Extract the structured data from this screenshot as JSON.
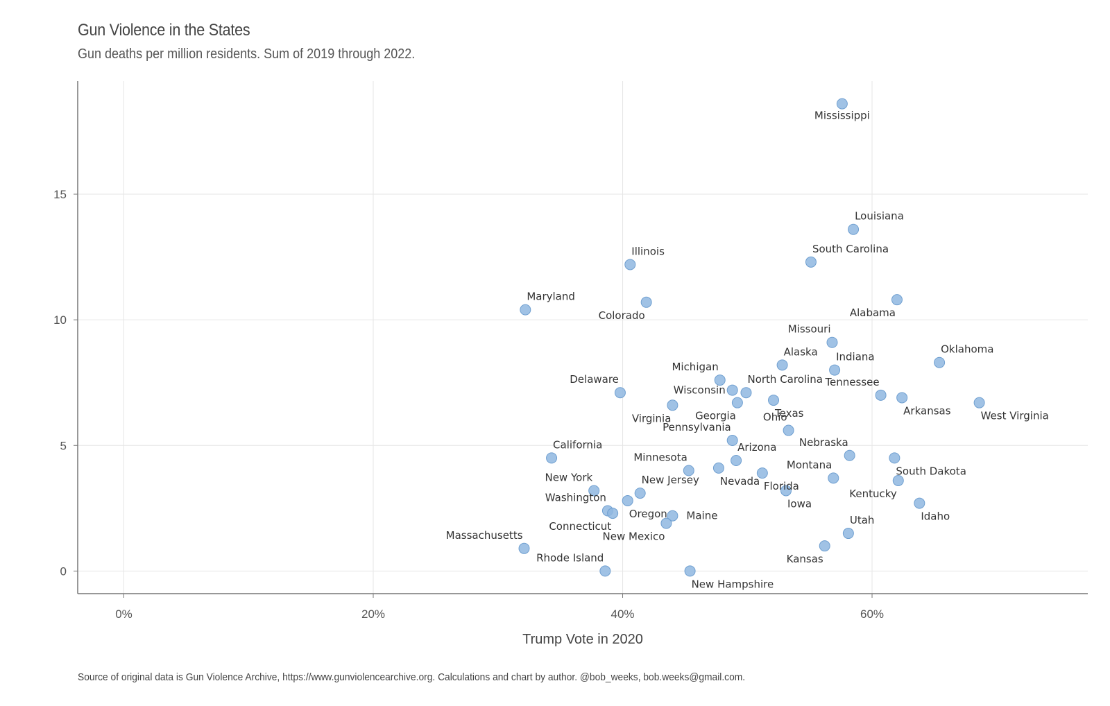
{
  "chart_data": {
    "type": "scatter",
    "title": "Gun Violence in the States",
    "subtitle": "Gun deaths per million residents. Sum of 2019 through 2022.",
    "xlabel": "Trump Vote in 2020",
    "ylabel": "",
    "caption": "Source of original data is Gun Violence Archive, https://www.gunviolencearchive.org. Calculations and chart by author. @bob_weeks, bob.weeks@gmail.com.",
    "xlim": [
      -3.7,
      77.3
    ],
    "ylim": [
      -0.9,
      19.5
    ],
    "x_ticks": [
      0,
      20,
      40,
      60
    ],
    "x_tick_labels": [
      "0%",
      "20%",
      "40%",
      "60%"
    ],
    "y_ticks": [
      0,
      5,
      10,
      15
    ],
    "y_tick_labels": [
      "0",
      "5",
      "10",
      "15"
    ],
    "grid": true,
    "point_color": "#8fb7e0",
    "points": [
      {
        "label": "Mississippi",
        "x": 57.6,
        "y": 18.6,
        "pos": "below"
      },
      {
        "label": "Louisiana",
        "x": 58.5,
        "y": 13.6,
        "pos": "above-right"
      },
      {
        "label": "South Carolina",
        "x": 55.1,
        "y": 12.3,
        "pos": "above-right"
      },
      {
        "label": "Illinois",
        "x": 40.6,
        "y": 12.2,
        "pos": "above-right"
      },
      {
        "label": "Alabama",
        "x": 62.0,
        "y": 10.8,
        "pos": "below-left"
      },
      {
        "label": "Colorado",
        "x": 41.9,
        "y": 10.7,
        "pos": "below-left"
      },
      {
        "label": "Maryland",
        "x": 32.2,
        "y": 10.4,
        "pos": "above-right"
      },
      {
        "label": "Missouri",
        "x": 56.8,
        "y": 9.1,
        "pos": "above-left"
      },
      {
        "label": "Oklahoma",
        "x": 65.4,
        "y": 8.3,
        "pos": "above-right"
      },
      {
        "label": "Alaska",
        "x": 52.8,
        "y": 8.2,
        "pos": "above-right"
      },
      {
        "label": "Indiana",
        "x": 57.0,
        "y": 8.0,
        "pos": "above-right"
      },
      {
        "label": "Michigan",
        "x": 47.8,
        "y": 7.6,
        "pos": "above-left"
      },
      {
        "label": "Wisconsin",
        "x": 48.8,
        "y": 7.2,
        "pos": "left"
      },
      {
        "label": "North Carolina",
        "x": 49.9,
        "y": 7.1,
        "pos": "above-right"
      },
      {
        "label": "Delaware",
        "x": 39.8,
        "y": 7.1,
        "pos": "above-left"
      },
      {
        "label": "Tennessee",
        "x": 60.7,
        "y": 7.0,
        "pos": "above-left"
      },
      {
        "label": "Arkansas",
        "x": 62.4,
        "y": 6.9,
        "pos": "below-right"
      },
      {
        "label": "Texas",
        "x": 52.1,
        "y": 6.8,
        "pos": "below-right"
      },
      {
        "label": "Georgia",
        "x": 49.2,
        "y": 6.7,
        "pos": "below-left"
      },
      {
        "label": "West Virginia",
        "x": 68.6,
        "y": 6.7,
        "pos": "below-right"
      },
      {
        "label": "Virginia",
        "x": 44.0,
        "y": 6.6,
        "pos": "below-left"
      },
      {
        "label": "Ohio",
        "x": 53.3,
        "y": 5.6,
        "pos": "above-left"
      },
      {
        "label": "Pennsylvania",
        "x": 48.8,
        "y": 5.2,
        "pos": "above-left"
      },
      {
        "label": "Nebraska",
        "x": 58.2,
        "y": 4.6,
        "pos": "above-left"
      },
      {
        "label": "California",
        "x": 34.3,
        "y": 4.5,
        "pos": "above-right"
      },
      {
        "label": "South Dakota",
        "x": 61.8,
        "y": 4.5,
        "pos": "below-right"
      },
      {
        "label": "Arizona",
        "x": 49.1,
        "y": 4.4,
        "pos": "above-right"
      },
      {
        "label": "Minnesota",
        "x": 45.3,
        "y": 4.0,
        "pos": "above-left"
      },
      {
        "label": "Nevada",
        "x": 47.7,
        "y": 4.1,
        "pos": "below-right"
      },
      {
        "label": "Florida",
        "x": 51.2,
        "y": 3.9,
        "pos": "below-right"
      },
      {
        "label": "Montana",
        "x": 56.9,
        "y": 3.7,
        "pos": "above-left"
      },
      {
        "label": "Kentucky",
        "x": 62.1,
        "y": 3.6,
        "pos": "below-left"
      },
      {
        "label": "New York",
        "x": 37.7,
        "y": 3.2,
        "pos": "above-left"
      },
      {
        "label": "New Jersey",
        "x": 41.4,
        "y": 3.1,
        "pos": "above-right"
      },
      {
        "label": "Iowa",
        "x": 53.1,
        "y": 3.2,
        "pos": "below-right"
      },
      {
        "label": "Oregon",
        "x": 40.4,
        "y": 2.8,
        "pos": "below-right"
      },
      {
        "label": "Idaho",
        "x": 63.8,
        "y": 2.7,
        "pos": "below-right"
      },
      {
        "label": "Washington",
        "x": 38.8,
        "y": 2.4,
        "pos": "above-left"
      },
      {
        "label": "Connecticut",
        "x": 39.2,
        "y": 2.3,
        "pos": "below-left"
      },
      {
        "label": "Maine",
        "x": 44.0,
        "y": 2.2,
        "pos": "right"
      },
      {
        "label": "New Mexico",
        "x": 43.5,
        "y": 1.9,
        "pos": "below-left"
      },
      {
        "label": "Utah",
        "x": 58.1,
        "y": 1.5,
        "pos": "above-right"
      },
      {
        "label": "Kansas",
        "x": 56.2,
        "y": 1.0,
        "pos": "below-left"
      },
      {
        "label": "Massachusetts",
        "x": 32.1,
        "y": 0.9,
        "pos": "above-left"
      },
      {
        "label": "Rhode Island",
        "x": 38.6,
        "y": 0.0,
        "pos": "above-left"
      },
      {
        "label": "New Hampshire",
        "x": 45.4,
        "y": 0.0,
        "pos": "below-right"
      }
    ]
  }
}
